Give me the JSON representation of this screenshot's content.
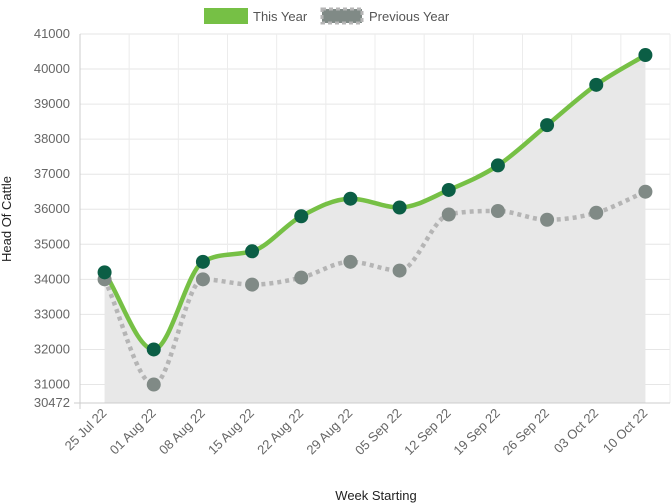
{
  "chart_data": {
    "type": "line",
    "xlabel": "Week Starting",
    "ylabel": "Head Of Cattle",
    "categories": [
      "25 Jul 22",
      "01 Aug 22",
      "08 Aug 22",
      "15 Aug 22",
      "22 Aug 22",
      "29 Aug 22",
      "05 Sep 22",
      "12 Sep 22",
      "19 Sep 22",
      "26 Sep 22",
      "03 Oct 22",
      "10 Oct 22"
    ],
    "ylim": [
      30472,
      41000
    ],
    "yticks": [
      30472,
      31000,
      32000,
      33000,
      34000,
      35000,
      36000,
      37000,
      38000,
      39000,
      40000,
      41000
    ],
    "grid": true,
    "legend_position": "top-center",
    "series": [
      {
        "name": "This Year",
        "color": "#76c045",
        "marker_color": "#0b5e45",
        "style": "solid",
        "values": [
          34200,
          32000,
          34500,
          34800,
          35800,
          36300,
          36050,
          36550,
          37250,
          38400,
          39550,
          40400
        ]
      },
      {
        "name": "Previous Year",
        "color": "#b5b5b5",
        "marker_color": "#808a86",
        "style": "dotted",
        "values": [
          34000,
          31000,
          34000,
          33850,
          34050,
          34500,
          34250,
          35850,
          35950,
          35700,
          35900,
          36500
        ]
      }
    ]
  }
}
